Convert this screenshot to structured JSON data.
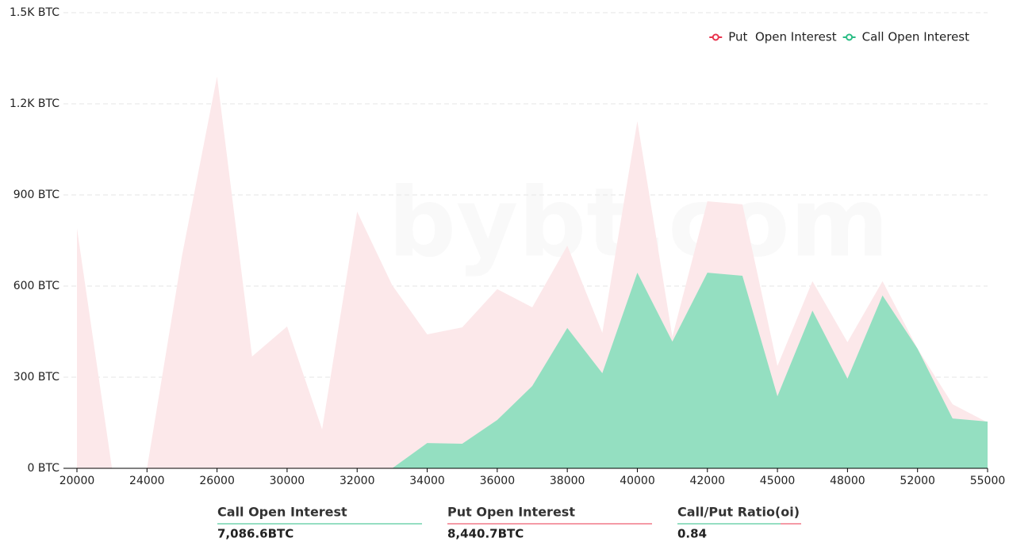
{
  "chart_data": {
    "type": "area",
    "watermark": "bybt.com",
    "categories": [
      "20000",
      null,
      "24000",
      null,
      "26000",
      null,
      "30000",
      null,
      "32000",
      null,
      "34000",
      null,
      "36000",
      null,
      "38000",
      null,
      "40000",
      null,
      "42000",
      null,
      "45000",
      null,
      "48000",
      null,
      "52000",
      null,
      "55000"
    ],
    "series": [
      {
        "name": "Put  Open Interest",
        "color": "#fce8ea",
        "legend_color": "#e8344e",
        "values": [
          790,
          0,
          0,
          700,
          1290,
          368,
          467,
          128,
          845,
          603,
          441,
          464,
          590,
          530,
          733,
          446,
          1143,
          433,
          879,
          869,
          337,
          616,
          415,
          616,
          394,
          211,
          151
        ]
      },
      {
        "name": "Call Open Interest",
        "color": "#94dfc1",
        "legend_color": "#2bbd85",
        "values": [
          0,
          0,
          0,
          0,
          0,
          0,
          0,
          0,
          0,
          0,
          83,
          81,
          159,
          271,
          462,
          313,
          644,
          417,
          644,
          634,
          237,
          519,
          295,
          569,
          394,
          164,
          154
        ]
      }
    ],
    "ylim": [
      0,
      1500
    ],
    "yticks": [
      {
        "value": 0,
        "label": "0 BTC"
      },
      {
        "value": 300,
        "label": "300 BTC"
      },
      {
        "value": 600,
        "label": "600 BTC"
      },
      {
        "value": 900,
        "label": "900 BTC"
      },
      {
        "value": 1200,
        "label": "1.2K BTC"
      },
      {
        "value": 1500,
        "label": "1.5K BTC"
      }
    ],
    "grid": true,
    "legend": "top-right"
  },
  "stats": [
    {
      "label": "Call Open Interest",
      "value": "7,086.6BTC",
      "color": "#2bbd85"
    },
    {
      "label": "Put Open Interest",
      "value": "8,440.7BTC",
      "color": "#e8344e"
    },
    {
      "label": "Call/Put Ratio(oi)",
      "value": "0.84",
      "color": "#2bbd85"
    }
  ]
}
